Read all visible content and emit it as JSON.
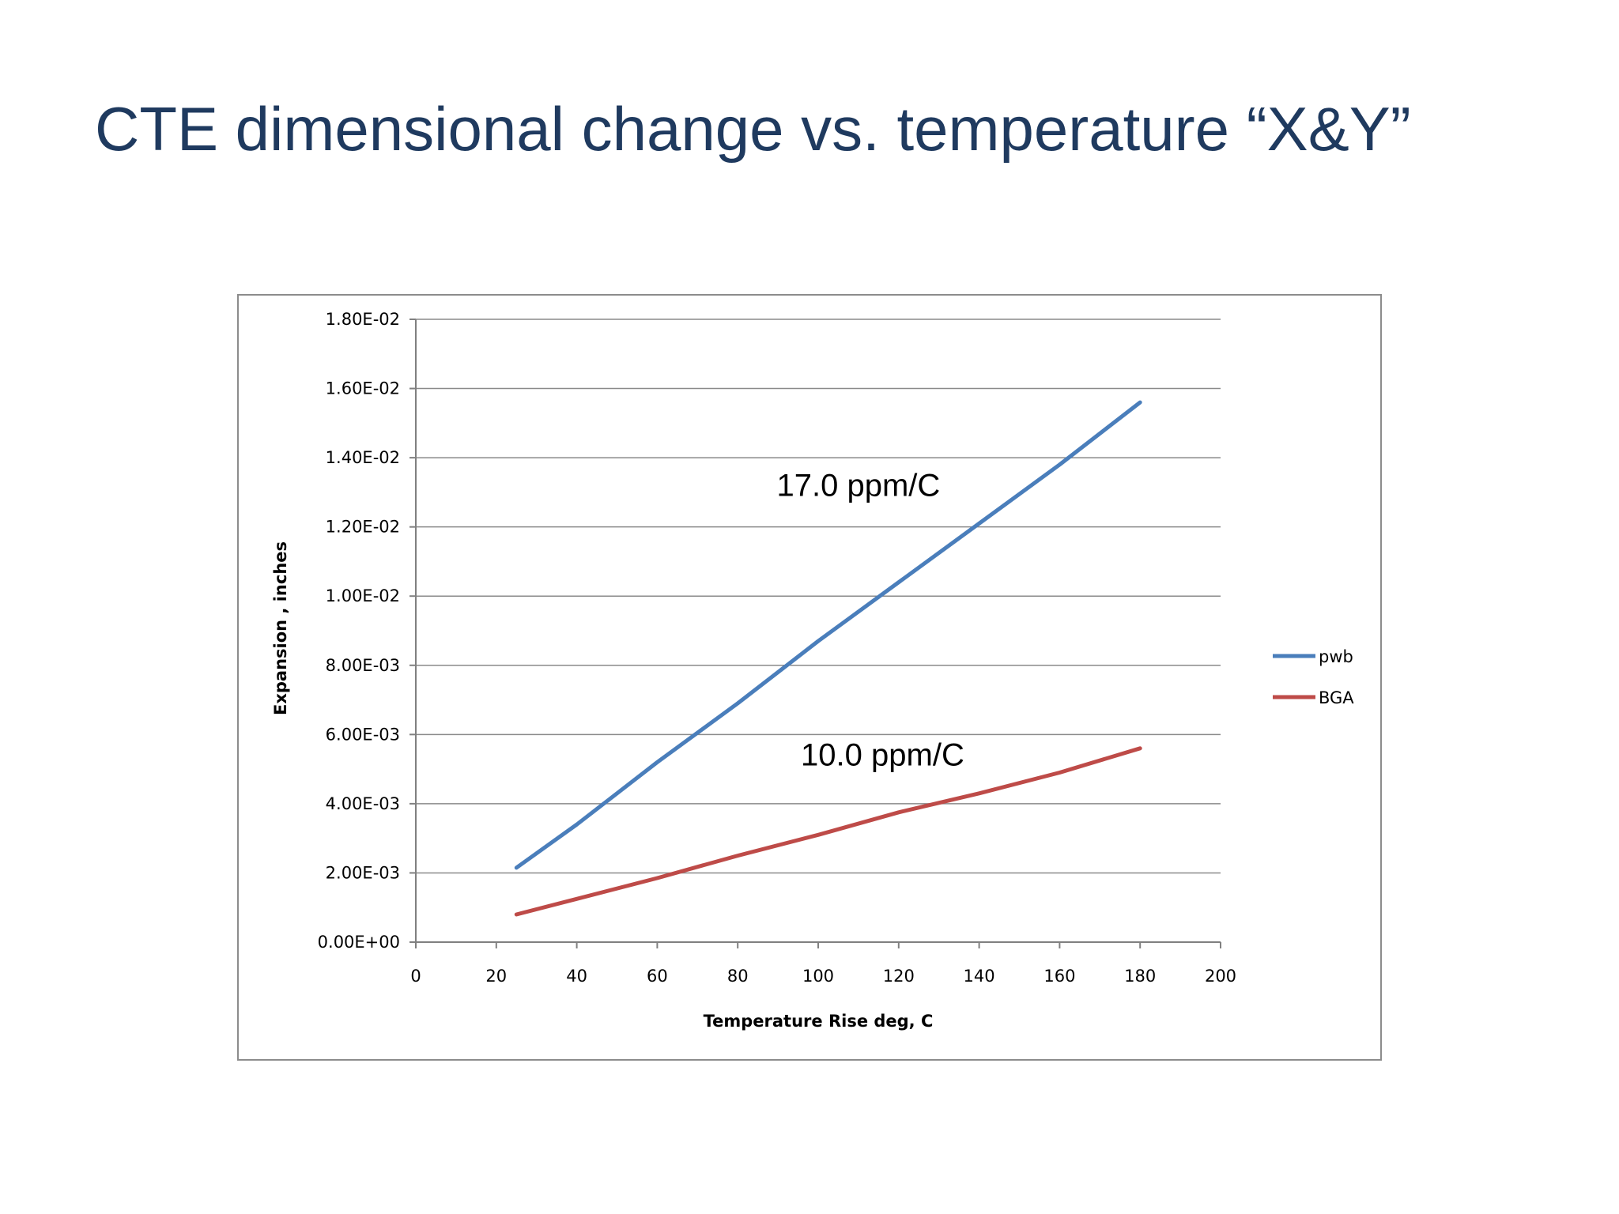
{
  "slide": {
    "title": "CTE dimensional change vs. temperature “X&Y”"
  },
  "chart_data": {
    "type": "line",
    "xlabel": "Temperature Rise deg, C",
    "ylabel": "Expansion , inches",
    "xlim": [
      0,
      200
    ],
    "ylim": [
      0,
      0.018
    ],
    "x_ticks": [
      "0",
      "20",
      "40",
      "60",
      "80",
      "100",
      "120",
      "140",
      "160",
      "180",
      "200"
    ],
    "x_tick_values": [
      0,
      20,
      40,
      60,
      80,
      100,
      120,
      140,
      160,
      180,
      200
    ],
    "y_ticks": [
      "0.00E+00",
      "2.00E-03",
      "4.00E-03",
      "6.00E-03",
      "8.00E-03",
      "1.00E-02",
      "1.20E-02",
      "1.40E-02",
      "1.60E-02",
      "1.80E-02"
    ],
    "y_tick_values": [
      0,
      0.002,
      0.004,
      0.006,
      0.008,
      0.01,
      0.012,
      0.014,
      0.016,
      0.018
    ],
    "grid": "horizontal",
    "legend_position": "right",
    "series": [
      {
        "name": "pwb",
        "color": "#4a7ebb",
        "x": [
          25,
          40,
          60,
          80,
          100,
          120,
          140,
          160,
          180
        ],
        "y": [
          0.00215,
          0.0034,
          0.0052,
          0.0069,
          0.0087,
          0.0104,
          0.0121,
          0.0138,
          0.0156
        ]
      },
      {
        "name": "BGA",
        "color": "#be4b48",
        "x": [
          25,
          40,
          60,
          80,
          100,
          120,
          140,
          160,
          180
        ],
        "y": [
          0.0008,
          0.00125,
          0.00185,
          0.0025,
          0.0031,
          0.00375,
          0.0043,
          0.0049,
          0.0056
        ]
      }
    ],
    "annotations": [
      {
        "text": "17.0 ppm/C",
        "x": 110,
        "y": 0.0129
      },
      {
        "text": "10.0 ppm/C",
        "x": 116,
        "y": 0.0051
      }
    ]
  }
}
